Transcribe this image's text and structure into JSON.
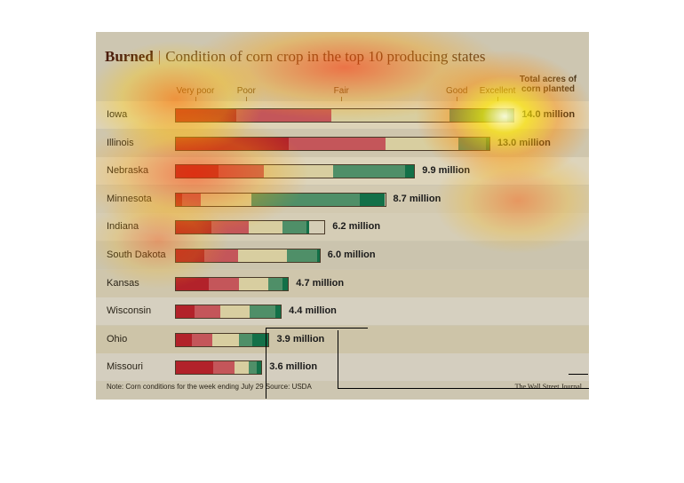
{
  "title": {
    "bold": "Burned",
    "separator": "|",
    "subtitle": "Condition of corn crop in the top 10 producing states"
  },
  "acres_header": "Total acres of corn planted",
  "scale_labels": [
    "Very poor",
    "Poor",
    "Fair",
    "Good",
    "Excellent"
  ],
  "note": "Note: Corn conditions for the week ending July 29    Source: USDA",
  "credit": "The Wall Street Journal",
  "colors": {
    "very_poor": "#b2222a",
    "poor": "#c4565a",
    "fair": "#d8cea0",
    "good": "#4f8f68",
    "excellent": "#137048"
  },
  "chart_data": {
    "type": "bar",
    "stacked": true,
    "categories": [
      "Iowa",
      "Illinois",
      "Nebraska",
      "Minnesota",
      "Indiana",
      "South Dakota",
      "Kansas",
      "Wisconsin",
      "Ohio",
      "Missouri"
    ],
    "series": [
      {
        "name": "Very poor",
        "values": [
          18,
          36,
          18,
          3,
          24,
          20,
          29,
          18,
          17,
          44
        ]
      },
      {
        "name": "Poor",
        "values": [
          28,
          31,
          19,
          9,
          25,
          23,
          27,
          24,
          22,
          25
        ]
      },
      {
        "name": "Fair",
        "values": [
          35,
          23,
          29,
          24,
          23,
          34,
          26,
          28,
          29,
          16
        ]
      },
      {
        "name": "Good",
        "values": [
          17,
          9,
          30,
          52,
          16,
          21,
          13,
          25,
          14,
          10
        ]
      },
      {
        "name": "Excellent",
        "values": [
          2,
          1,
          4,
          12,
          2,
          2,
          5,
          5,
          18,
          5
        ]
      }
    ],
    "acres": [
      14.0,
      13.0,
      9.9,
      8.7,
      6.2,
      6.0,
      4.7,
      4.4,
      3.9,
      3.6
    ],
    "acres_labels": [
      "14.0 million",
      "13.0 million",
      "9.9 million",
      "8.7 million",
      "6.2 million",
      "6.0 million",
      "4.7 million",
      "4.4 million",
      "3.9 million",
      "3.6 million"
    ],
    "xlim": [
      0,
      100
    ]
  }
}
